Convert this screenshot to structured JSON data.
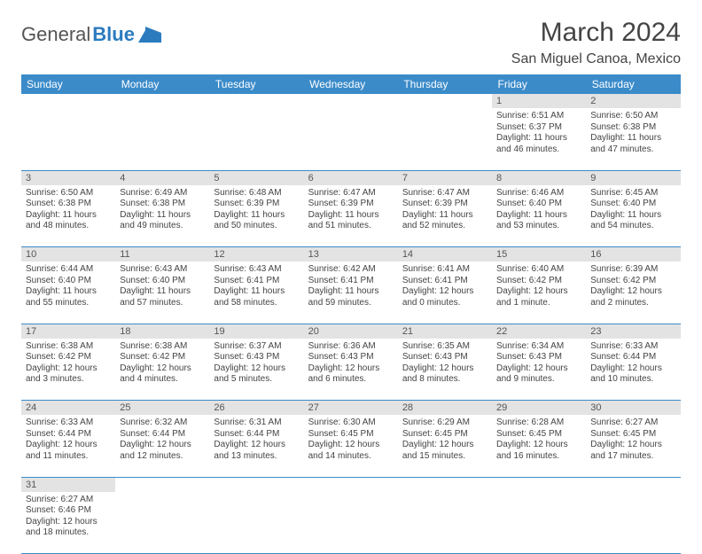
{
  "logo": {
    "part1": "General",
    "part2": "Blue"
  },
  "title": "March 2024",
  "subtitle": "San Miguel Canoa, Mexico",
  "colors": {
    "header_bg": "#3b8bc9",
    "header_text": "#ffffff",
    "daynum_bg": "#e3e3e3",
    "border": "#3b8bc9",
    "text": "#444444",
    "logo_gray": "#555555",
    "logo_blue": "#2b7bbf"
  },
  "weekdays": [
    "Sunday",
    "Monday",
    "Tuesday",
    "Wednesday",
    "Thursday",
    "Friday",
    "Saturday"
  ],
  "weeks": [
    [
      null,
      null,
      null,
      null,
      null,
      {
        "n": "1",
        "sr": "6:51 AM",
        "ss": "6:37 PM",
        "dl": "11 hours and 46 minutes."
      },
      {
        "n": "2",
        "sr": "6:50 AM",
        "ss": "6:38 PM",
        "dl": "11 hours and 47 minutes."
      }
    ],
    [
      {
        "n": "3",
        "sr": "6:50 AM",
        "ss": "6:38 PM",
        "dl": "11 hours and 48 minutes."
      },
      {
        "n": "4",
        "sr": "6:49 AM",
        "ss": "6:38 PM",
        "dl": "11 hours and 49 minutes."
      },
      {
        "n": "5",
        "sr": "6:48 AM",
        "ss": "6:39 PM",
        "dl": "11 hours and 50 minutes."
      },
      {
        "n": "6",
        "sr": "6:47 AM",
        "ss": "6:39 PM",
        "dl": "11 hours and 51 minutes."
      },
      {
        "n": "7",
        "sr": "6:47 AM",
        "ss": "6:39 PM",
        "dl": "11 hours and 52 minutes."
      },
      {
        "n": "8",
        "sr": "6:46 AM",
        "ss": "6:40 PM",
        "dl": "11 hours and 53 minutes."
      },
      {
        "n": "9",
        "sr": "6:45 AM",
        "ss": "6:40 PM",
        "dl": "11 hours and 54 minutes."
      }
    ],
    [
      {
        "n": "10",
        "sr": "6:44 AM",
        "ss": "6:40 PM",
        "dl": "11 hours and 55 minutes."
      },
      {
        "n": "11",
        "sr": "6:43 AM",
        "ss": "6:40 PM",
        "dl": "11 hours and 57 minutes."
      },
      {
        "n": "12",
        "sr": "6:43 AM",
        "ss": "6:41 PM",
        "dl": "11 hours and 58 minutes."
      },
      {
        "n": "13",
        "sr": "6:42 AM",
        "ss": "6:41 PM",
        "dl": "11 hours and 59 minutes."
      },
      {
        "n": "14",
        "sr": "6:41 AM",
        "ss": "6:41 PM",
        "dl": "12 hours and 0 minutes."
      },
      {
        "n": "15",
        "sr": "6:40 AM",
        "ss": "6:42 PM",
        "dl": "12 hours and 1 minute."
      },
      {
        "n": "16",
        "sr": "6:39 AM",
        "ss": "6:42 PM",
        "dl": "12 hours and 2 minutes."
      }
    ],
    [
      {
        "n": "17",
        "sr": "6:38 AM",
        "ss": "6:42 PM",
        "dl": "12 hours and 3 minutes."
      },
      {
        "n": "18",
        "sr": "6:38 AM",
        "ss": "6:42 PM",
        "dl": "12 hours and 4 minutes."
      },
      {
        "n": "19",
        "sr": "6:37 AM",
        "ss": "6:43 PM",
        "dl": "12 hours and 5 minutes."
      },
      {
        "n": "20",
        "sr": "6:36 AM",
        "ss": "6:43 PM",
        "dl": "12 hours and 6 minutes."
      },
      {
        "n": "21",
        "sr": "6:35 AM",
        "ss": "6:43 PM",
        "dl": "12 hours and 8 minutes."
      },
      {
        "n": "22",
        "sr": "6:34 AM",
        "ss": "6:43 PM",
        "dl": "12 hours and 9 minutes."
      },
      {
        "n": "23",
        "sr": "6:33 AM",
        "ss": "6:44 PM",
        "dl": "12 hours and 10 minutes."
      }
    ],
    [
      {
        "n": "24",
        "sr": "6:33 AM",
        "ss": "6:44 PM",
        "dl": "12 hours and 11 minutes."
      },
      {
        "n": "25",
        "sr": "6:32 AM",
        "ss": "6:44 PM",
        "dl": "12 hours and 12 minutes."
      },
      {
        "n": "26",
        "sr": "6:31 AM",
        "ss": "6:44 PM",
        "dl": "12 hours and 13 minutes."
      },
      {
        "n": "27",
        "sr": "6:30 AM",
        "ss": "6:45 PM",
        "dl": "12 hours and 14 minutes."
      },
      {
        "n": "28",
        "sr": "6:29 AM",
        "ss": "6:45 PM",
        "dl": "12 hours and 15 minutes."
      },
      {
        "n": "29",
        "sr": "6:28 AM",
        "ss": "6:45 PM",
        "dl": "12 hours and 16 minutes."
      },
      {
        "n": "30",
        "sr": "6:27 AM",
        "ss": "6:45 PM",
        "dl": "12 hours and 17 minutes."
      }
    ],
    [
      {
        "n": "31",
        "sr": "6:27 AM",
        "ss": "6:46 PM",
        "dl": "12 hours and 18 minutes."
      },
      null,
      null,
      null,
      null,
      null,
      null
    ]
  ]
}
